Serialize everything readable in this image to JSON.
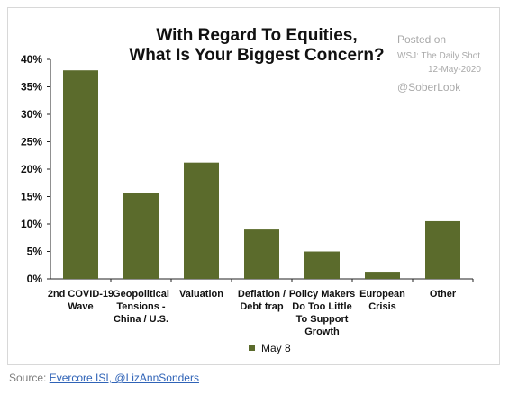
{
  "chart_data": {
    "type": "bar",
    "title": [
      "With Regard To Equities,",
      "What Is Your Biggest Concern?"
    ],
    "categories": [
      [
        "2nd COVID-19",
        "Wave"
      ],
      [
        "Geopolitical",
        "Tensions -",
        "China / U.S."
      ],
      [
        "Valuation"
      ],
      [
        "Deflation /",
        "Debt trap"
      ],
      [
        "Policy Makers",
        "Do Too Little",
        "To Support",
        "Growth"
      ],
      [
        "European",
        "Crisis"
      ],
      [
        "Other"
      ]
    ],
    "series": [
      {
        "name": "May 8",
        "values": [
          38,
          15.7,
          21.2,
          9,
          5,
          1.3,
          10.5
        ]
      }
    ],
    "yticks": [
      "0%",
      "5%",
      "10%",
      "15%",
      "20%",
      "25%",
      "30%",
      "35%",
      "40%"
    ],
    "ylim": [
      0,
      40
    ],
    "grid": false,
    "legend": "bottom",
    "bar_color": "#5b6b2c"
  },
  "annotation": {
    "posted": "Posted on",
    "source_name": "WSJ: The Daily Shot",
    "date": "12-May-2020",
    "handle": "@SoberLook"
  },
  "footer": {
    "source_label": "Source: ",
    "source_link": "Evercore ISI, @LizAnnSonders"
  }
}
